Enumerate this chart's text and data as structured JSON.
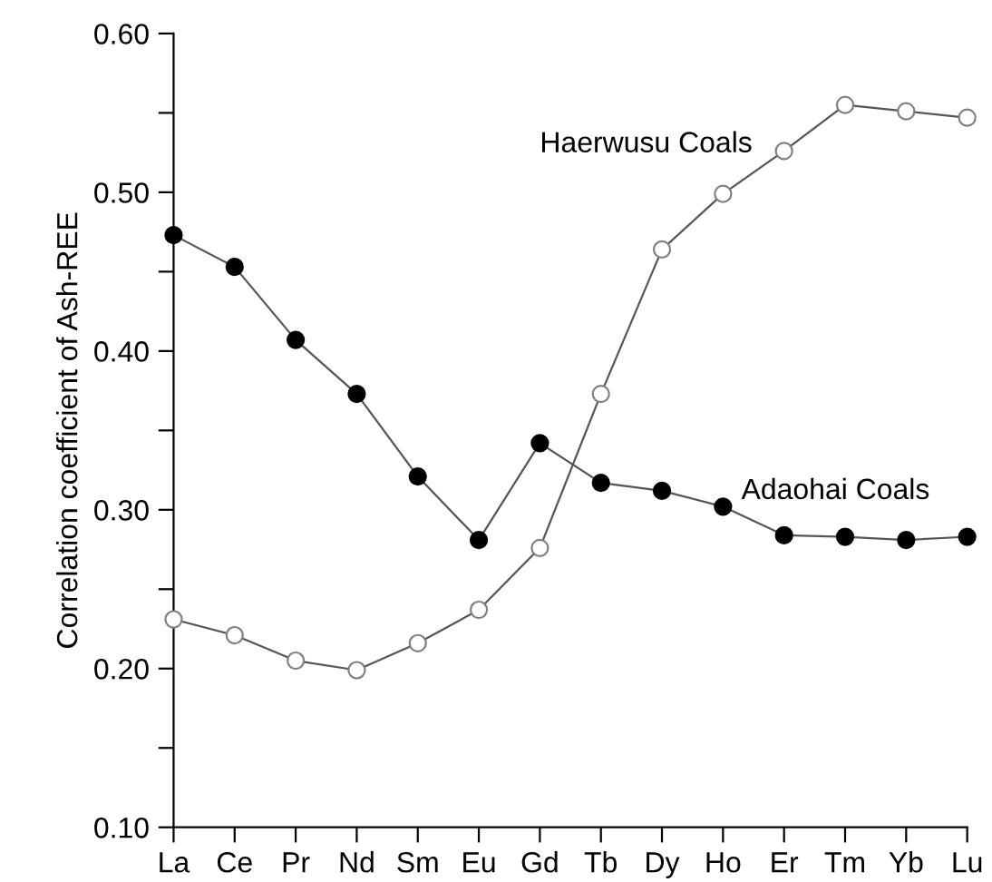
{
  "chart_data": {
    "type": "line",
    "ylabel": "Correlation coefficient of Ash-REE",
    "categories": [
      "La",
      "Ce",
      "Pr",
      "Nd",
      "Sm",
      "Eu",
      "Gd",
      "Tb",
      "Dy",
      "Ho",
      "Er",
      "Tm",
      "Yb",
      "Lu"
    ],
    "series": [
      {
        "name": "Adaohai Coals",
        "color": "#000000",
        "values": [
          0.473,
          0.453,
          0.407,
          0.373,
          0.321,
          0.281,
          0.342,
          0.317,
          0.312,
          0.302,
          0.284,
          0.283,
          0.281,
          0.283
        ]
      },
      {
        "name": "Haerwusu Coals",
        "color": "#808080",
        "values": [
          0.231,
          0.221,
          0.205,
          0.199,
          0.216,
          0.237,
          0.276,
          0.373,
          0.464,
          0.499,
          0.526,
          0.555,
          0.551,
          0.547
        ]
      }
    ],
    "ylim": [
      0.1,
      0.6
    ],
    "yticks": [
      {
        "value": 0.1,
        "label": "0.10"
      },
      {
        "value": 0.15,
        "label": null
      },
      {
        "value": 0.2,
        "label": "0.20"
      },
      {
        "value": 0.25,
        "label": null
      },
      {
        "value": 0.3,
        "label": "0.30"
      },
      {
        "value": 0.35,
        "label": null
      },
      {
        "value": 0.4,
        "label": "0.40"
      },
      {
        "value": 0.45,
        "label": null
      },
      {
        "value": 0.5,
        "label": "0.50"
      },
      {
        "value": 0.55,
        "label": null
      },
      {
        "value": 0.6,
        "label": "0.60"
      }
    ],
    "marker": "circle",
    "line_style": "solid",
    "grid": false,
    "legend": false
  }
}
